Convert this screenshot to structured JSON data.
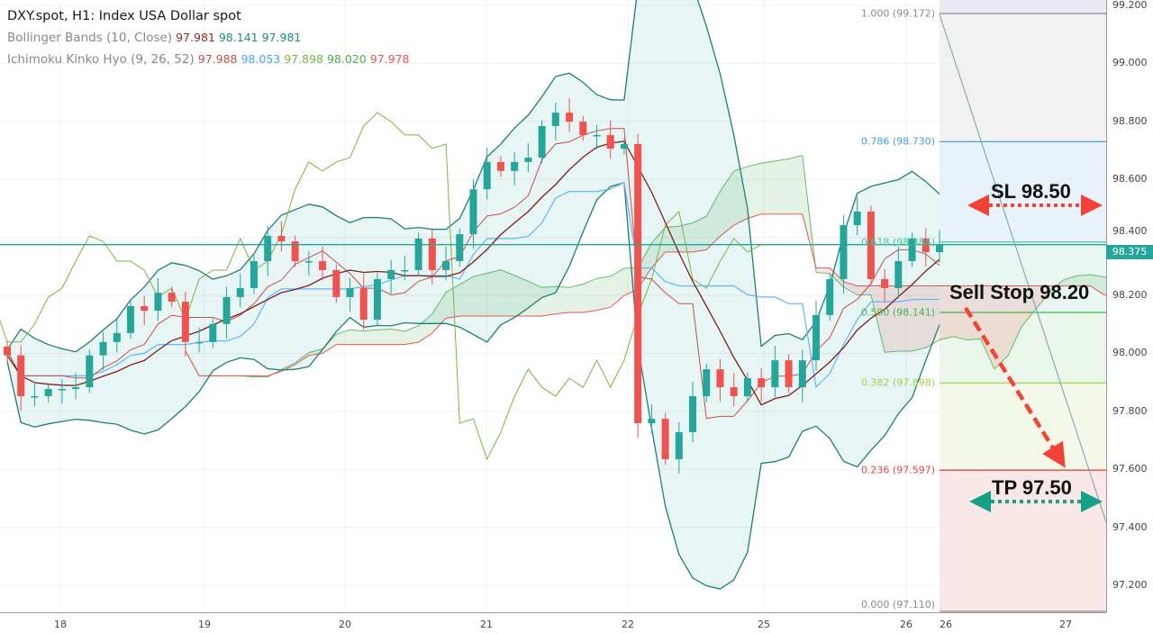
{
  "header": {
    "title": "DXY.spot, H1: Index USA Dollar spot",
    "bollinger": {
      "label": "Bollinger Bands (10, Close)",
      "values": [
        "97.981",
        "98.141",
        "97.981"
      ],
      "colors": [
        "#8b2c2c",
        "#1f8c86",
        "#1f8c86"
      ]
    },
    "ichimoku": {
      "label": "Ichimoku Kinko Hyo (9, 26, 52)",
      "values": [
        "97.988",
        "98.053",
        "97.898",
        "98.020",
        "97.978"
      ],
      "colors": [
        "#c0504d",
        "#42a5f5",
        "#7cb342",
        "#4caf50",
        "#ef5350"
      ]
    }
  },
  "price_axis": {
    "ticks": [
      "99.200",
      "99.000",
      "98.800",
      "98.600",
      "98.400",
      "98.200",
      "98.000",
      "97.800",
      "97.600",
      "97.400",
      "97.200"
    ],
    "current_price": "98.375"
  },
  "time_axis": {
    "labels": [
      "18",
      "19",
      "20",
      "21",
      "22",
      "25",
      "26",
      "26",
      "27"
    ]
  },
  "fibonacci": [
    {
      "label": "1.000 (99.172)",
      "price": 99.172,
      "color": "#8a8a8a",
      "fill": "#f1f1f1"
    },
    {
      "label": "0.786 (98.730)",
      "price": 98.73,
      "color": "#4a9fd8",
      "fill": "#e7f2fa"
    },
    {
      "label": "0.618 (98.384)",
      "price": 98.384,
      "color": "#4cc79a",
      "fill": "#e8f7f1"
    },
    {
      "label": "0.500 (98.141)",
      "price": 98.141,
      "color": "#4caf50",
      "fill": "#eaf6e9"
    },
    {
      "label": "0.382 (97.898)",
      "price": 97.898,
      "color": "#a5d15a",
      "fill": "#f4f8e8"
    },
    {
      "label": "0.236 (97.597)",
      "price": 97.597,
      "color": "#e04848",
      "fill": "#fae7e7"
    },
    {
      "label": "0.000 (97.110)",
      "price": 97.11,
      "color": "#8a8a8a",
      "fill": "#fae7e7"
    }
  ],
  "annotations": {
    "sl": {
      "text": "SL 98.50",
      "color": "#f44336"
    },
    "sell_stop": {
      "text": "Sell Stop 98.20",
      "color": "#f44336"
    },
    "tp": {
      "text": "TP 97.50",
      "color": "#16a085"
    }
  },
  "chart_data": {
    "type": "candlestick",
    "symbol": "DXY.spot",
    "timeframe": "H1",
    "ylim": [
      97.11,
      99.22
    ],
    "x_tick_labels": [
      "18",
      "19",
      "20",
      "21",
      "22",
      "25",
      "26",
      "26",
      "27"
    ],
    "close": [
      97.993,
      97.852,
      97.852,
      97.877,
      97.877,
      97.883,
      97.993,
      98.039,
      98.07,
      98.163,
      98.147,
      98.209,
      98.178,
      98.039,
      98.039,
      98.101,
      98.194,
      98.225,
      98.318,
      98.405,
      98.386,
      98.318,
      98.318,
      98.287,
      98.194,
      98.225,
      98.116,
      98.256,
      98.287,
      98.287,
      98.396,
      98.287,
      98.318,
      98.411,
      98.566,
      98.66,
      98.629,
      98.66,
      98.675,
      98.784,
      98.83,
      98.799,
      98.753,
      98.753,
      98.706,
      98.722,
      97.759,
      97.774,
      97.635,
      97.728,
      97.852,
      97.945,
      97.883,
      97.852,
      97.914,
      97.883,
      97.976,
      97.883,
      97.976,
      98.132,
      98.256,
      98.442,
      98.489,
      98.256,
      98.225,
      98.318,
      98.396,
      98.349,
      98.375
    ],
    "up_color": "#26a69a",
    "down_color": "#ef5350"
  }
}
